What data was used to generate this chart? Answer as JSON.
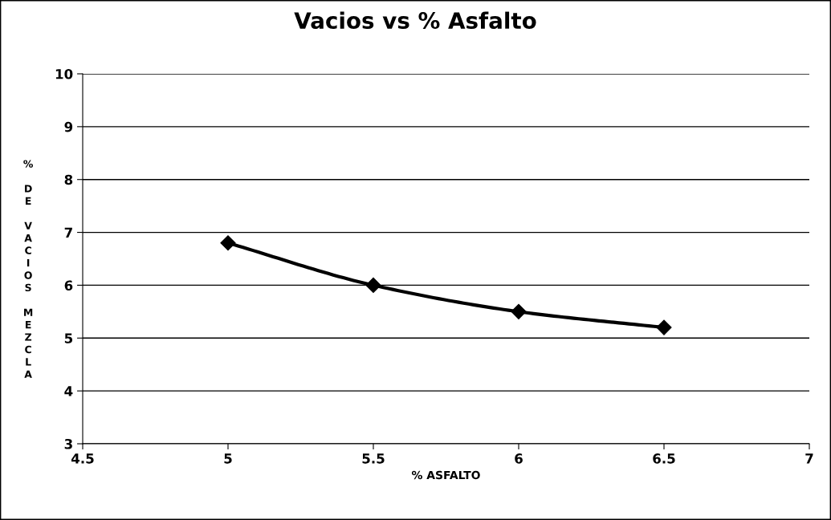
{
  "chart_data": {
    "type": "line",
    "title": "Vacios vs % Asfalto",
    "xlabel": "% ASFALTO",
    "ylabel": "% DE VACIOS MEZCLA",
    "x": [
      5,
      5.5,
      6,
      6.5
    ],
    "series": [
      {
        "color": "#000000",
        "values": [
          6.8,
          6.0,
          5.5,
          5.2
        ]
      }
    ],
    "xlim": [
      4.5,
      7
    ],
    "xticks": [
      4.5,
      5,
      5.5,
      6,
      6.5,
      7
    ],
    "ylim": [
      3,
      10
    ],
    "yticks": [
      3,
      4,
      5,
      6,
      7,
      8,
      9,
      10
    ],
    "grid": "y",
    "marker": "diamond",
    "line_style": "solid",
    "legend": false
  }
}
